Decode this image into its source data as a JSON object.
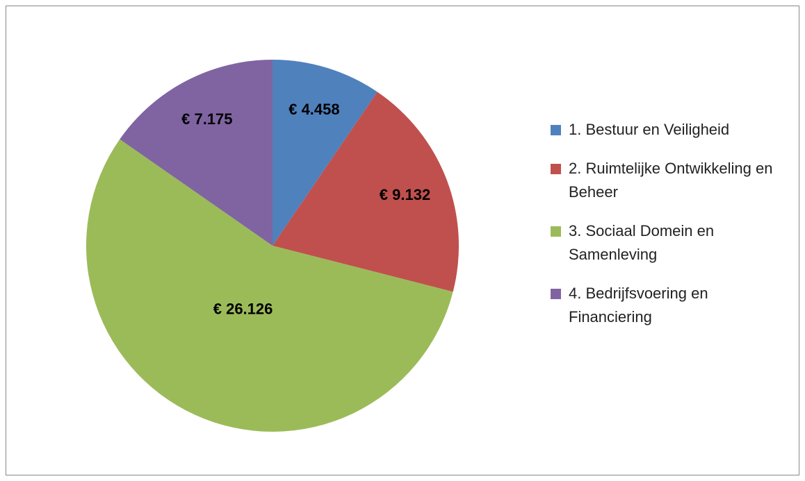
{
  "chart_data": {
    "type": "pie",
    "categories": [
      "1. Bestuur en Veiligheid",
      "2. Ruimtelijke Ontwikkeling en Beheer",
      "3. Sociaal Domein en Samenleving",
      "4. Bedrijfsvoering en Financiering"
    ],
    "values": [
      4458,
      9132,
      26126,
      7175
    ],
    "value_labels": [
      "€ 4.458",
      "€ 9.132",
      "€ 26.126",
      "€ 7.175"
    ],
    "colors": [
      "#4f81bd",
      "#c0504d",
      "#9bbb59",
      "#8064a2"
    ],
    "legend": "right"
  }
}
